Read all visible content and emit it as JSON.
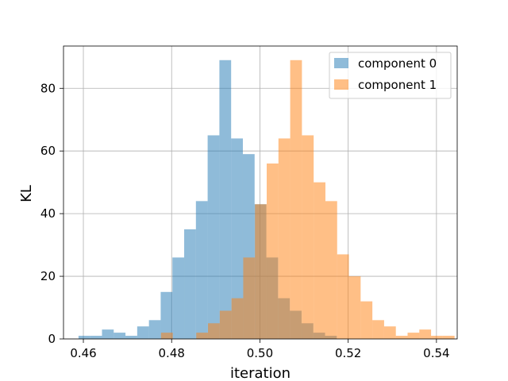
{
  "chart_data": {
    "type": "bar",
    "subtype": "histogram",
    "xlabel": "iteration",
    "ylabel": "KL",
    "xlim": [
      0.4555,
      0.5447
    ],
    "ylim": [
      0,
      93.5
    ],
    "xticks": [
      0.46,
      0.48,
      0.5,
      0.52,
      0.54
    ],
    "xtick_labels": [
      "0.46",
      "0.48",
      "0.50",
      "0.52",
      "0.54"
    ],
    "yticks": [
      0,
      20,
      40,
      60,
      80
    ],
    "ytick_labels": [
      "0",
      "20",
      "40",
      "60",
      "80"
    ],
    "grid": true,
    "legend_position": "top-right",
    "series": [
      {
        "name": "component 0",
        "color": "#1f77b4",
        "opacity": 0.5,
        "bin_start": 0.4589,
        "bin_width": 0.00266,
        "counts": [
          1,
          1,
          3,
          2,
          1,
          4,
          6,
          15,
          26,
          35,
          44,
          65,
          89,
          64,
          59,
          43,
          26,
          13,
          9,
          5,
          2,
          1
        ]
      },
      {
        "name": "component 1",
        "color": "#ff7f0e",
        "opacity": 0.5,
        "bin_start": 0.4776,
        "bin_width": 0.00266,
        "counts": [
          2,
          0,
          0,
          2,
          5,
          9,
          13,
          26,
          43,
          56,
          64,
          89,
          65,
          50,
          44,
          27,
          20,
          12,
          6,
          4,
          1,
          2,
          3,
          1,
          1
        ]
      }
    ]
  }
}
